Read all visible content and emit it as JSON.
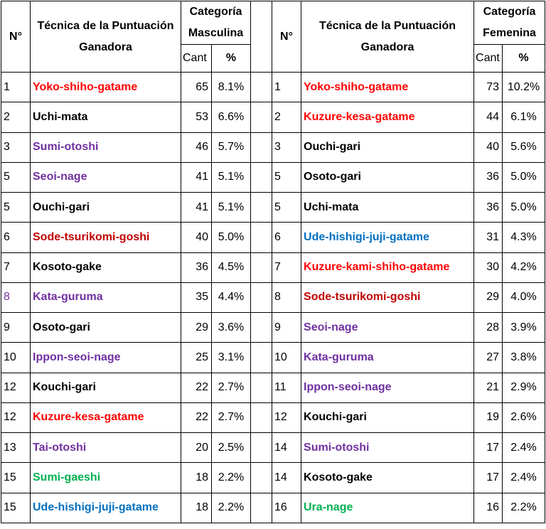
{
  "colors": {
    "red": "#ff0000",
    "darkred": "#c00000",
    "purple": "#7030a0",
    "black": "#000000",
    "blue": "#0070c0",
    "green": "#00b050"
  },
  "headers": {
    "num": "N°",
    "tech_m": "Técnica de la Puntuación Ganadora",
    "cat_m": "Categoría Masculina",
    "tech_f": "Técnica de la Puntuación Ganadora",
    "cat_f": "Categoría Femenina",
    "cant": "Cant",
    "pct": "%"
  },
  "rows": [
    {
      "m": {
        "n": "1",
        "tech": "Yoko-shiho-gatame",
        "color": "red",
        "cant": "65",
        "pct": "8.1%"
      },
      "f": {
        "n": "1",
        "tech": "Yoko-shiho-gatame",
        "color": "red",
        "cant": "73",
        "pct": "10.2%"
      }
    },
    {
      "m": {
        "n": "2",
        "tech": "Uchi-mata",
        "color": "black",
        "cant": "53",
        "pct": "6.6%"
      },
      "f": {
        "n": "2",
        "tech": "Kuzure-kesa-gatame",
        "color": "red",
        "cant": "44",
        "pct": "6.1%"
      }
    },
    {
      "m": {
        "n": "3",
        "tech": "Sumi-otoshi",
        "color": "purple",
        "cant": "46",
        "pct": "5.7%"
      },
      "f": {
        "n": "3",
        "tech": "Ouchi-gari",
        "color": "black",
        "cant": "40",
        "pct": "5.6%"
      }
    },
    {
      "m": {
        "n": "5",
        "tech": "Seoi-nage",
        "color": "purple",
        "cant": "41",
        "pct": "5.1%"
      },
      "f": {
        "n": "5",
        "tech": "Osoto-gari",
        "color": "black",
        "cant": "36",
        "pct": "5.0%"
      }
    },
    {
      "m": {
        "n": "5",
        "tech": "Ouchi-gari",
        "color": "black",
        "cant": "41",
        "pct": "5.1%"
      },
      "f": {
        "n": "5",
        "tech": "Uchi-mata",
        "color": "black",
        "cant": "36",
        "pct": "5.0%"
      }
    },
    {
      "m": {
        "n": "6",
        "tech": "Sode-tsurikomi-goshi",
        "color": "darkred",
        "cant": "40",
        "pct": "5.0%"
      },
      "f": {
        "n": "6",
        "tech": "Ude-hishigi-juji-gatame",
        "color": "blue",
        "cant": "31",
        "pct": "4.3%"
      }
    },
    {
      "m": {
        "n": "7",
        "tech": "Kosoto-gake",
        "color": "black",
        "cant": "36",
        "pct": "4.5%"
      },
      "f": {
        "n": "7",
        "tech": "Kuzure-kami-shiho-gatame",
        "color": "red",
        "cant": "30",
        "pct": "4.2%"
      }
    },
    {
      "m": {
        "n": "8",
        "tech": "Kata-guruma",
        "color": "purple",
        "cant": "35",
        "pct": "4.4%",
        "ncolor": "purple"
      },
      "f": {
        "n": "8",
        "tech": "Sode-tsurikomi-goshi",
        "color": "darkred",
        "cant": "29",
        "pct": "4.0%"
      }
    },
    {
      "m": {
        "n": "9",
        "tech": "Osoto-gari",
        "color": "black",
        "cant": "29",
        "pct": "3.6%"
      },
      "f": {
        "n": "9",
        "tech": "Seoi-nage",
        "color": "purple",
        "cant": "28",
        "pct": "3.9%"
      }
    },
    {
      "m": {
        "n": "10",
        "tech": "Ippon-seoi-nage",
        "color": "purple",
        "cant": "25",
        "pct": "3.1%"
      },
      "f": {
        "n": "10",
        "tech": "Kata-guruma",
        "color": "purple",
        "cant": "27",
        "pct": "3.8%"
      }
    },
    {
      "m": {
        "n": "12",
        "tech": "Kouchi-gari",
        "color": "black",
        "cant": "22",
        "pct": "2.7%"
      },
      "f": {
        "n": "11",
        "tech": "Ippon-seoi-nage",
        "color": "purple",
        "cant": "21",
        "pct": "2.9%"
      }
    },
    {
      "m": {
        "n": "12",
        "tech": "Kuzure-kesa-gatame",
        "color": "red",
        "cant": "22",
        "pct": "2.7%"
      },
      "f": {
        "n": "12",
        "tech": "Kouchi-gari",
        "color": "black",
        "cant": "19",
        "pct": "2.6%"
      }
    },
    {
      "m": {
        "n": "13",
        "tech": "Tai-otoshi",
        "color": "purple",
        "cant": "20",
        "pct": "2.5%"
      },
      "f": {
        "n": "14",
        "tech": "Sumi-otoshi",
        "color": "purple",
        "cant": "17",
        "pct": "2.4%"
      }
    },
    {
      "m": {
        "n": "15",
        "tech": "Sumi-gaeshi",
        "color": "green",
        "cant": "18",
        "pct": "2.2%"
      },
      "f": {
        "n": "14",
        "tech": "Kosoto-gake",
        "color": "black",
        "cant": "17",
        "pct": "2.4%"
      }
    },
    {
      "m": {
        "n": "15",
        "tech": "Ude-hishigi-juji-gatame",
        "color": "blue",
        "cant": "18",
        "pct": "2.2%"
      },
      "f": {
        "n": "16",
        "tech": "Ura-nage",
        "color": "green",
        "cant": "16",
        "pct": "2.2%"
      }
    }
  ]
}
